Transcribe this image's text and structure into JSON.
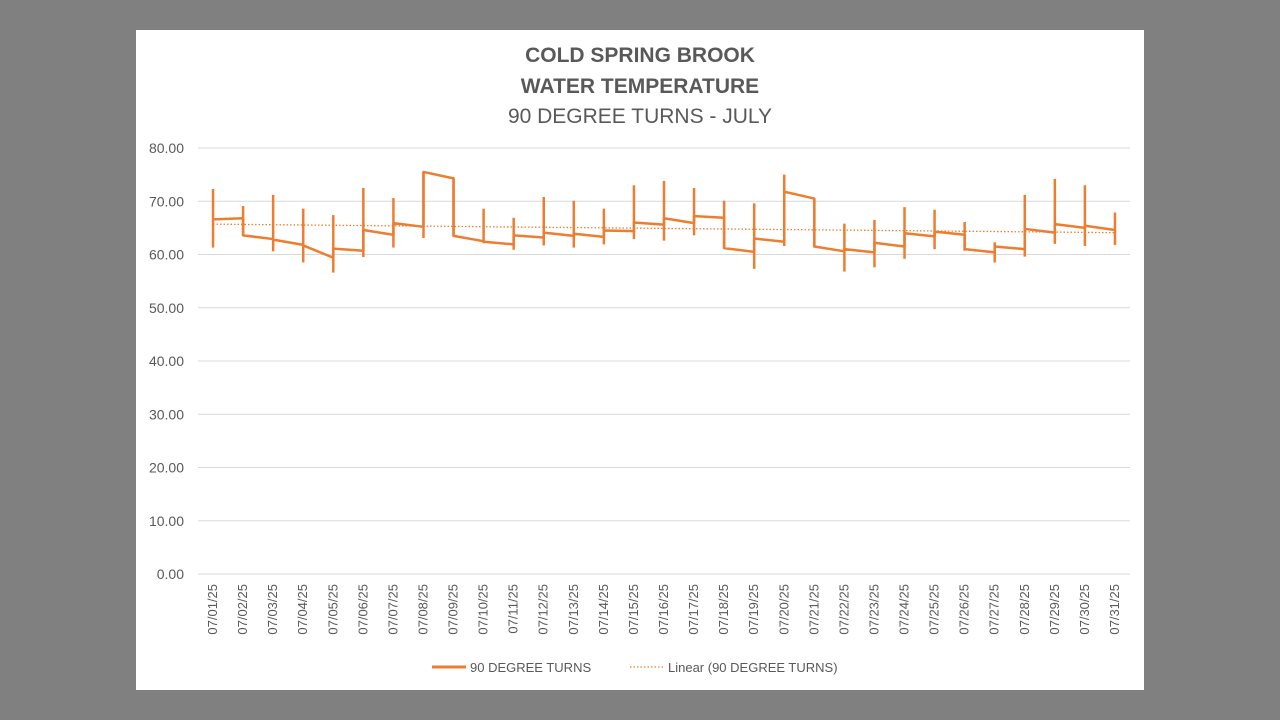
{
  "chart_data": {
    "type": "line",
    "title": [
      "COLD SPRING BROOK",
      "WATER TEMPERATURE"
    ],
    "subtitle": "90 DEGREE TURNS - JULY",
    "xlabel": "",
    "ylabel": "",
    "ylim": [
      0,
      80
    ],
    "yticks": [
      "0.00",
      "10.00",
      "20.00",
      "30.00",
      "40.00",
      "50.00",
      "60.00",
      "70.00",
      "80.00"
    ],
    "grid": true,
    "legend_position": "bottom",
    "categories": [
      "07/01/25",
      "07/02/25",
      "07/03/25",
      "07/04/25",
      "07/05/25",
      "07/06/25",
      "07/07/25",
      "07/08/25",
      "07/09/25",
      "07/10/25",
      "07/11/25",
      "07/12/25",
      "07/13/25",
      "07/14/25",
      "07/15/25",
      "07/16/25",
      "07/17/25",
      "07/18/25",
      "07/19/25",
      "07/20/25",
      "07/21/25",
      "07/22/25",
      "07/23/25",
      "07/24/25",
      "07/25/25",
      "07/26/25",
      "07/27/25",
      "07/28/25",
      "07/29/25",
      "07/30/25",
      "07/31/25"
    ],
    "series": [
      {
        "name": "90 DEGREE TURNS",
        "color": "#ED7D31",
        "style": "solid",
        "daily_high": [
          72.3,
          69.1,
          71.2,
          68.6,
          67.4,
          72.5,
          70.6,
          75.5,
          74.3,
          68.6,
          66.9,
          70.8,
          70.1,
          68.6,
          73.0,
          73.8,
          72.5,
          70.1,
          69.6,
          75.0,
          70.5,
          65.8,
          66.5,
          68.9,
          68.4,
          66.1,
          62.3,
          71.2,
          74.2,
          73.0,
          67.9
        ],
        "daily_low": [
          61.3,
          63.5,
          60.6,
          58.5,
          56.6,
          59.5,
          61.3,
          63.1,
          63.5,
          62.1,
          60.9,
          61.7,
          61.3,
          61.9,
          62.9,
          62.6,
          63.6,
          61.1,
          57.3,
          61.6,
          61.4,
          56.8,
          57.6,
          59.2,
          61.0,
          60.7,
          58.5,
          59.6,
          62.0,
          61.6,
          61.8
        ],
        "start": [
          66.6,
          63.6,
          62.8,
          61.7,
          61.1,
          64.6,
          65.9,
          75.5,
          63.5,
          62.4,
          63.6,
          64.1,
          63.9,
          64.5,
          66.0,
          66.8,
          67.2,
          61.2,
          63.0,
          71.8,
          61.5,
          61.0,
          62.2,
          64.0,
          64.3,
          61.0,
          61.5,
          64.8,
          65.7,
          65.4,
          64.6
        ],
        "end": [
          66.8,
          62.9,
          61.8,
          59.4,
          60.7,
          63.7,
          65.2,
          74.3,
          62.5,
          61.9,
          63.2,
          63.5,
          63.3,
          64.4,
          65.6,
          65.9,
          66.9,
          60.5,
          62.4,
          70.5,
          60.6,
          60.4,
          61.5,
          63.4,
          63.7,
          60.4,
          61.0,
          64.1,
          65.0,
          64.6,
          64.5
        ]
      },
      {
        "name": "Linear (90 DEGREE TURNS)",
        "color": "#ED7D31",
        "style": "dotted",
        "start_value": 65.7,
        "end_value": 64.1
      }
    ]
  },
  "legend": {
    "series_label": "90 DEGREE TURNS",
    "trend_label": "Linear (90 DEGREE TURNS)"
  }
}
